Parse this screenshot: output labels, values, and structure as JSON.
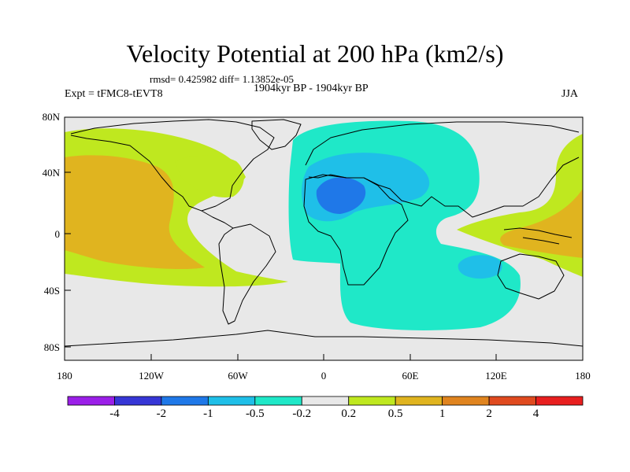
{
  "title": "Velocity Potential at 200 hPa (km2/s)",
  "stats": "rmsd= 0.425982 diff= 1.13852e-05",
  "expt": "Expt = tFMC8-tEVT8",
  "period": "1904kyr BP - 1904kyr BP",
  "season": "JJA",
  "lat_labels": [
    "80N",
    "40N",
    "0",
    "40S",
    "80S"
  ],
  "lon_labels": [
    "180",
    "120W",
    "60W",
    "0",
    "60E",
    "120E",
    "180"
  ],
  "legend": {
    "levels": [
      "-4",
      "-2",
      "-1",
      "-0.5",
      "-0.2",
      "0.2",
      "0.5",
      "1",
      "2",
      "4"
    ],
    "colors": [
      "#9b1fe8",
      "#3636d6",
      "#1f78e8",
      "#1fbfe8",
      "#1fe8c8",
      "#e8e8e8",
      "#bfe81f",
      "#e0b41f",
      "#e0841f",
      "#e04a1f",
      "#e81f1f"
    ]
  },
  "colors": {
    "background": "#e8e8e8",
    "neg_light": "#1fe8c8",
    "neg_mid": "#1fbfe8",
    "neg_strong": "#1f78e8",
    "pos_light": "#bfe81f",
    "pos_mid": "#e0b41f",
    "pos_strong": "#e0841f"
  }
}
